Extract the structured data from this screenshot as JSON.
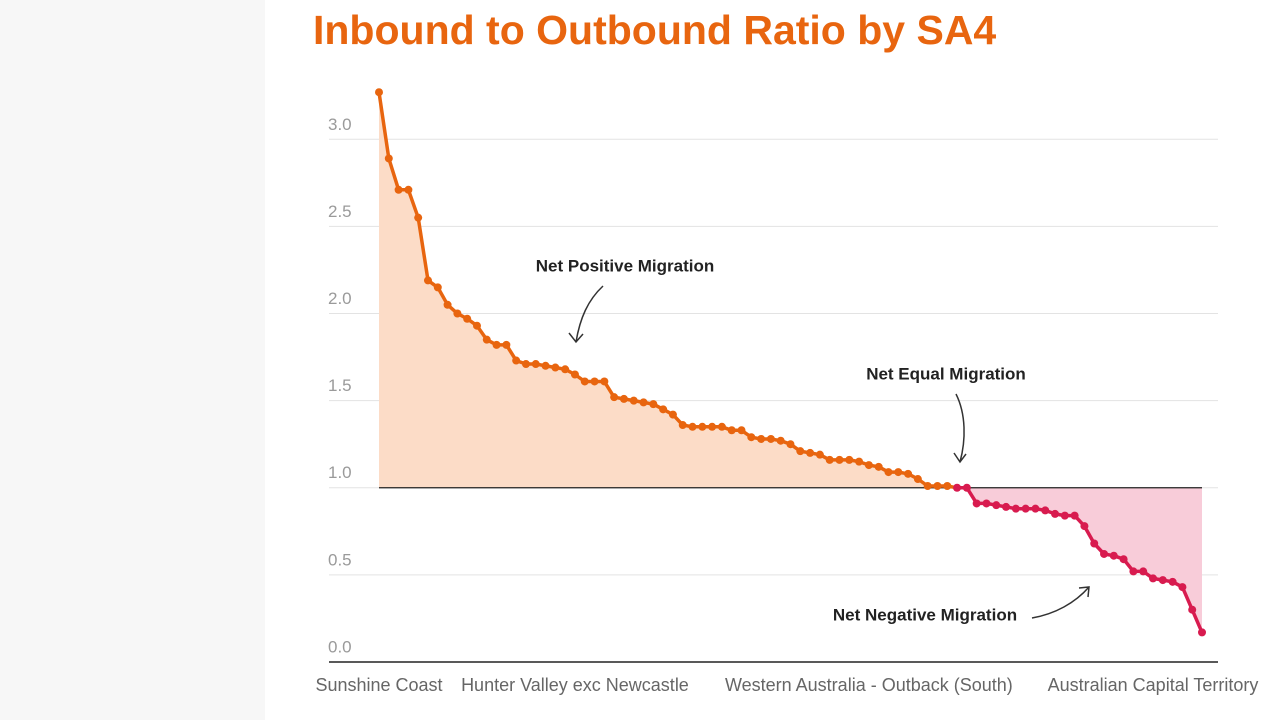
{
  "chart_data": {
    "type": "area-line",
    "title": "Inbound to Outbound Ratio by SA4",
    "title_color": "#e8650f",
    "annotations": [
      "Net Positive Migration",
      "Net Equal Migration",
      "Net Negative Migration"
    ],
    "categories": [
      "Sunshine Coast",
      null,
      null,
      null,
      null,
      null,
      null,
      null,
      null,
      null,
      null,
      null,
      null,
      null,
      null,
      null,
      null,
      null,
      null,
      null,
      "Hunter Valley exc Newcastle",
      null,
      null,
      null,
      null,
      null,
      null,
      null,
      null,
      null,
      null,
      null,
      null,
      null,
      null,
      null,
      null,
      null,
      null,
      null,
      null,
      null,
      null,
      null,
      null,
      null,
      null,
      null,
      null,
      null,
      "Western Australia - Outback (South)",
      null,
      null,
      null,
      null,
      null,
      null,
      null,
      null,
      null,
      null,
      null,
      null,
      null,
      null,
      null,
      null,
      null,
      null,
      null,
      null,
      null,
      null,
      null,
      null,
      null,
      null,
      null,
      null,
      "Australian Capital Territory",
      null,
      null,
      null,
      null,
      null
    ],
    "values": [
      3.27,
      2.89,
      2.71,
      2.71,
      2.55,
      2.19,
      2.15,
      2.05,
      2.0,
      1.97,
      1.93,
      1.85,
      1.82,
      1.82,
      1.73,
      1.71,
      1.71,
      1.7,
      1.69,
      1.68,
      1.65,
      1.61,
      1.61,
      1.61,
      1.52,
      1.51,
      1.5,
      1.49,
      1.48,
      1.45,
      1.42,
      1.36,
      1.35,
      1.35,
      1.35,
      1.35,
      1.33,
      1.33,
      1.29,
      1.28,
      1.28,
      1.27,
      1.25,
      1.21,
      1.2,
      1.19,
      1.16,
      1.16,
      1.16,
      1.15,
      1.13,
      1.12,
      1.09,
      1.09,
      1.08,
      1.05,
      1.01,
      1.01,
      1.01,
      1.0,
      1.0,
      0.91,
      0.91,
      0.9,
      0.89,
      0.88,
      0.88,
      0.88,
      0.87,
      0.85,
      0.84,
      0.84,
      0.78,
      0.68,
      0.62,
      0.61,
      0.59,
      0.52,
      0.52,
      0.48,
      0.47,
      0.46,
      0.43,
      0.3,
      0.17
    ],
    "baseline": 1,
    "color_above": "#e8650f",
    "fill_above": "#fcdcc7",
    "color_below": "#d81b4f",
    "fill_below": "#f8ccd9",
    "ylim": [
      0,
      3.3
    ],
    "yticks": [
      {
        "value": 0,
        "label": "0.0"
      },
      {
        "value": 0.5,
        "label": "0.5"
      },
      {
        "value": 1,
        "label": "1.0"
      },
      {
        "value": 1.5,
        "label": "1.5"
      },
      {
        "value": 2,
        "label": "2.0"
      },
      {
        "value": 2.5,
        "label": "2.5"
      },
      {
        "value": 3,
        "label": "3.0"
      }
    ],
    "grid": true
  }
}
